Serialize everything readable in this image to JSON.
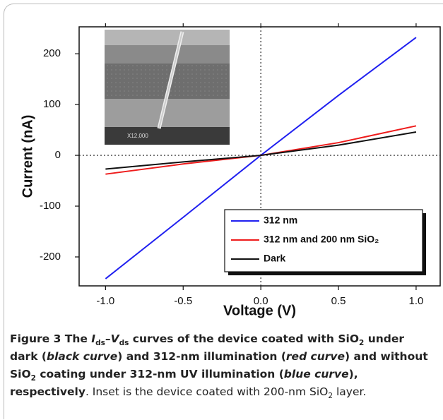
{
  "chart_data": {
    "type": "line",
    "xlabel": "Voltage (V)",
    "ylabel": "Current (nA)",
    "x": [
      -1,
      -0.5,
      0,
      0.5,
      1
    ],
    "series": [
      {
        "name": "312 nm",
        "color": "#2020f0",
        "values": [
          -243,
          -122,
          0,
          118,
          232
        ]
      },
      {
        "name": "312 nm and 200 nm SiO₂",
        "color": "#ee1c1c",
        "values": [
          -37,
          -17,
          0,
          25,
          58
        ]
      },
      {
        "name": "Dark",
        "color": "#111111",
        "values": [
          -27,
          -13,
          0,
          20,
          46
        ]
      }
    ],
    "xlim": [
      -1.17,
      1.155
    ],
    "ylim": [
      -257,
      253
    ],
    "xticks": [
      {
        "value": -1,
        "label": "-1.0"
      },
      {
        "value": -0.5,
        "label": "-0.5"
      },
      {
        "value": 0,
        "label": "0.0"
      },
      {
        "value": 0.5,
        "label": "0.5"
      },
      {
        "value": 1,
        "label": "1.0"
      }
    ],
    "yticks": [
      -200,
      -100,
      0,
      100,
      200
    ],
    "reference_lines": true,
    "legend": "lower right"
  },
  "inset_text": "X12,000",
  "caption": {
    "segments": [
      {
        "text": "Figure 3",
        "style": "b"
      },
      {
        "text": " The ",
        "style": "b"
      },
      {
        "text": "I",
        "style": "b i"
      },
      {
        "text": "ds",
        "style": "b sub"
      },
      {
        "text": "–",
        "style": "b"
      },
      {
        "text": "V",
        "style": "b i"
      },
      {
        "text": "ds",
        "style": "b sub"
      },
      {
        "text": " curves of the device coated with SiO",
        "style": "b"
      },
      {
        "text": "2",
        "style": "b sub"
      },
      {
        "text": " under dark (",
        "style": "b"
      },
      {
        "text": "black curve",
        "style": "b i"
      },
      {
        "text": ") and 312-nm illumination (",
        "style": "b"
      },
      {
        "text": "red curve",
        "style": "b i"
      },
      {
        "text": ") and without SiO",
        "style": "b"
      },
      {
        "text": "2",
        "style": "b sub"
      },
      {
        "text": " coating under 312-nm UV illumination (",
        "style": "b"
      },
      {
        "text": "blue curve",
        "style": "b i"
      },
      {
        "text": "), respectively",
        "style": "b"
      },
      {
        "text": ". Inset is the device coated with 200-nm SiO",
        "style": ""
      },
      {
        "text": "2",
        "style": "sub"
      },
      {
        "text": " layer.",
        "style": ""
      }
    ]
  }
}
